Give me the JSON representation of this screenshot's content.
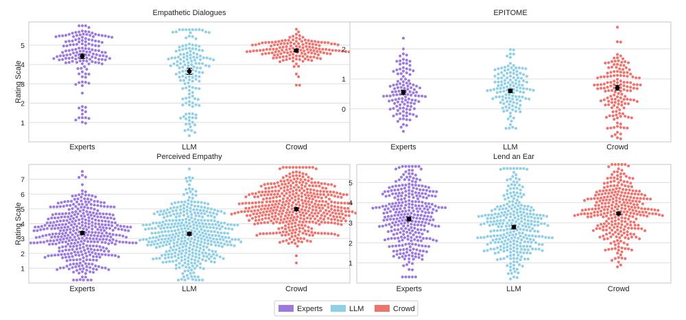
{
  "colors": {
    "Experts": "#9c79df",
    "LLM": "#8fd0e8",
    "Crowd": "#f0726c",
    "grid": "#dddddd",
    "frame": "#c4c4c4",
    "mean": "#000000"
  },
  "legend": {
    "items": [
      {
        "label": "Experts",
        "color": "#9c79df"
      },
      {
        "label": "LLM",
        "color": "#8fd0e8"
      },
      {
        "label": "Crowd",
        "color": "#f0726c"
      }
    ],
    "position": "bottom-center"
  },
  "chart_data": [
    {
      "type": "swarm",
      "title": "Empathetic Dialogues",
      "ylabel": "Rating Scale",
      "categories": [
        "Experts",
        "LLM",
        "Crowd"
      ],
      "ylim": [
        0,
        6.2
      ],
      "yticks": [
        1,
        2,
        3,
        4,
        5
      ],
      "n_points": [
        150,
        150,
        150
      ],
      "distributions": [
        {
          "center": 4.8,
          "spread": 0.55,
          "min": 0.9,
          "max": 6.0,
          "lowTail": 0.2
        },
        {
          "center": 4.6,
          "spread": 0.75,
          "min": 0.3,
          "max": 5.8,
          "lowTail": 0.45
        },
        {
          "center": 4.8,
          "spread": 0.35,
          "min": 2.6,
          "max": 5.9,
          "lowTail": 0.08
        }
      ],
      "means": [
        4.42,
        3.65,
        4.72
      ],
      "errors": [
        0.12,
        0.16,
        0.07
      ]
    },
    {
      "type": "swarm",
      "title": "EPITOME",
      "ylabel": "",
      "categories": [
        "Experts",
        "LLM",
        "Crowd"
      ],
      "ylim": [
        -1.1,
        2.9
      ],
      "yticks": [
        0,
        1,
        2
      ],
      "n_points": [
        120,
        130,
        150
      ],
      "distributions": [
        {
          "center": 0.5,
          "spread": 0.65,
          "min": -0.75,
          "max": 2.5,
          "lowTail": 0.0
        },
        {
          "center": 0.6,
          "spread": 0.55,
          "min": -0.65,
          "max": 2.9,
          "lowTail": 0.0
        },
        {
          "center": 0.5,
          "spread": 0.8,
          "min": -1.0,
          "max": 2.8,
          "lowTail": 0.0
        }
      ],
      "means": [
        0.55,
        0.6,
        0.7
      ],
      "errors": [
        0.07,
        0.06,
        0.08
      ]
    },
    {
      "type": "swarm",
      "title": "Perceived Empathy",
      "ylabel": "Rating Scale",
      "categories": [
        "Experts",
        "LLM",
        "Crowd"
      ],
      "ylim": [
        0,
        8.0
      ],
      "yticks": [
        1,
        2,
        3,
        4,
        5,
        6,
        7
      ],
      "n_points": [
        420,
        420,
        460
      ],
      "distributions": [
        {
          "center": 3.4,
          "spread": 1.5,
          "min": 0.2,
          "max": 7.8,
          "lowTail": 0.0
        },
        {
          "center": 3.3,
          "spread": 1.5,
          "min": 0.2,
          "max": 7.7,
          "lowTail": 0.0
        },
        {
          "center": 5.2,
          "spread": 1.3,
          "min": 0.7,
          "max": 7.8,
          "lowTail": 0.0
        }
      ],
      "means": [
        3.38,
        3.32,
        4.98
      ],
      "errors": [
        0.1,
        0.1,
        0.09
      ]
    },
    {
      "type": "swarm",
      "title": "Lend an Ear",
      "ylabel": "",
      "categories": [
        "Experts",
        "LLM",
        "Crowd"
      ],
      "ylim": [
        0,
        5.9
      ],
      "yticks": [
        1,
        2,
        3,
        4,
        5
      ],
      "n_points": [
        320,
        300,
        300
      ],
      "distributions": [
        {
          "center": 3.2,
          "spread": 1.35,
          "min": 0.3,
          "max": 5.8,
          "lowTail": 0.0
        },
        {
          "center": 2.7,
          "spread": 1.25,
          "min": 0.2,
          "max": 5.7,
          "lowTail": 0.0
        },
        {
          "center": 3.5,
          "spread": 1.0,
          "min": 0.8,
          "max": 5.9,
          "lowTail": 0.0
        }
      ],
      "means": [
        3.18,
        2.78,
        3.46
      ],
      "errors": [
        0.1,
        0.09,
        0.07
      ]
    }
  ]
}
